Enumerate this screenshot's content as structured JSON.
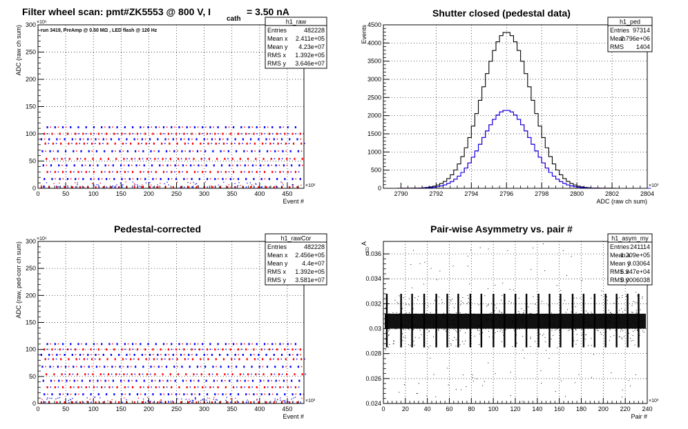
{
  "canvas_title": "Filter wheel scan: pmt#ZK5553 @   800 V, I",
  "canvas_title_sub": "cath",
  "canvas_title_tail": "= 3.50 nA",
  "colors": {
    "red": "#ff0000",
    "blue": "#0000ff",
    "black": "#000000",
    "grid": "#000000"
  },
  "chart_data": [
    {
      "id": "h1_raw",
      "type": "scatter",
      "title": "",
      "annotation": "run 3419, PreAmp @ 0.50 MΩ , LED flash @  120 Hz",
      "xlabel": "Event #",
      "ylabel": "ADC (raw ch sum)",
      "xlim": [
        0,
        480000
      ],
      "ylim": [
        0,
        300000000
      ],
      "x_ticks": [
        "0",
        "50",
        "100",
        "150",
        "200",
        "250",
        "300",
        "350",
        "400",
        "450"
      ],
      "x_tick_values": [
        0,
        50000,
        100000,
        150000,
        200000,
        250000,
        300000,
        350000,
        400000,
        450000
      ],
      "x_exponent": "×10³",
      "y_ticks": [
        "0",
        "50",
        "100",
        "150",
        "200",
        "250",
        "300"
      ],
      "y_tick_values": [
        0,
        50000000,
        100000000,
        150000000,
        200000000,
        250000000,
        300000000
      ],
      "y_exponent": "×10⁶",
      "grid": true,
      "levels": [
        2000000,
        17000000,
        30000000,
        42000000,
        54000000,
        68000000,
        82000000,
        90000000,
        100000000,
        112000000
      ],
      "stats": {
        "title": "h1_raw",
        "rows": [
          [
            "Entries",
            "482228"
          ],
          [
            "Mean x",
            "2.411e+05"
          ],
          [
            "Mean y",
            "4.23e+07"
          ],
          [
            "RMS x",
            "1.392e+05"
          ],
          [
            "RMS y",
            "3.646e+07"
          ]
        ]
      }
    },
    {
      "id": "h1_ped",
      "type": "line",
      "title": "Shutter closed (pedestal data)",
      "xlabel": "ADC (raw ch sum)",
      "ylabel": "Events",
      "xlim": [
        2789000,
        2804000
      ],
      "ylim": [
        0,
        4500
      ],
      "x_ticks": [
        "2790",
        "2792",
        "2794",
        "2796",
        "2798",
        "2800",
        "2802",
        "2804"
      ],
      "x_tick_values": [
        2790000,
        2792000,
        2794000,
        2796000,
        2798000,
        2800000,
        2802000,
        2804000
      ],
      "x_exponent": "×10³",
      "y_ticks": [
        "0",
        "500",
        "1000",
        "1500",
        "2000",
        "2500",
        "3000",
        "3500",
        "4000",
        "4500"
      ],
      "y_tick_values": [
        0,
        500,
        1000,
        1500,
        2000,
        2500,
        3000,
        3500,
        4000,
        4500
      ],
      "grid": true,
      "series": [
        {
          "color": "black",
          "mean": 2796000,
          "sigma": 1400,
          "peak": 4300
        },
        {
          "color": "red",
          "mean": 2796000,
          "sigma": 1400,
          "peak": 2150
        },
        {
          "color": "blue",
          "mean": 2796000,
          "sigma": 1400,
          "peak": 2150
        }
      ],
      "stats": {
        "title": "h1_ped",
        "rows": [
          [
            "Entries",
            "97314"
          ],
          [
            "Mean",
            "2.796e+06"
          ],
          [
            "RMS",
            "1404"
          ]
        ]
      }
    },
    {
      "id": "h1_rawCor",
      "type": "scatter",
      "title": "Pedestal-corrected",
      "xlabel": "Event #",
      "ylabel": "ADC (raw, ped-corr ch sum)",
      "xlim": [
        0,
        480000
      ],
      "ylim": [
        0,
        300000000
      ],
      "x_ticks": [
        "0",
        "50",
        "100",
        "150",
        "200",
        "250",
        "300",
        "350",
        "400",
        "450"
      ],
      "x_tick_values": [
        0,
        50000,
        100000,
        150000,
        200000,
        250000,
        300000,
        350000,
        400000,
        450000
      ],
      "x_exponent": "×10³",
      "y_ticks": [
        "0",
        "50",
        "100",
        "150",
        "200",
        "250",
        "300"
      ],
      "y_tick_values": [
        0,
        50000000,
        100000000,
        150000000,
        200000000,
        250000000,
        300000000
      ],
      "y_exponent": "×10⁶",
      "grid": true,
      "levels": [
        2000000,
        17000000,
        30000000,
        42000000,
        54000000,
        68000000,
        82000000,
        90000000,
        100000000,
        110000000
      ],
      "stats": {
        "title": "h1_rawCor",
        "rows": [
          [
            "Entries",
            "482228"
          ],
          [
            "Mean x",
            "2.456e+05"
          ],
          [
            "Mean y",
            "4.4e+07"
          ],
          [
            "RMS x",
            "1.392e+05"
          ],
          [
            "RMS y",
            "3.581e+07"
          ]
        ]
      }
    },
    {
      "id": "h1_asym_my",
      "type": "scatter",
      "title": "Pair-wise Asymmetry vs. pair #",
      "xlabel": "Pair #",
      "ylabel": "A",
      "ylabel_sub": "LED",
      "xlim": [
        0,
        240000
      ],
      "ylim": [
        0.024,
        0.037
      ],
      "x_ticks": [
        "0",
        "20",
        "40",
        "60",
        "80",
        "100",
        "120",
        "140",
        "160",
        "180",
        "200",
        "220",
        "240"
      ],
      "x_tick_values": [
        0,
        20000,
        40000,
        60000,
        80000,
        100000,
        120000,
        140000,
        160000,
        180000,
        200000,
        220000,
        240000
      ],
      "x_exponent": "×10³",
      "y_ticks": [
        "0.024",
        "0.026",
        "0.028",
        "0.03",
        "0.032",
        "0.034",
        "0.036"
      ],
      "y_tick_values": [
        0.024,
        0.026,
        0.028,
        0.03,
        0.032,
        0.034,
        0.036
      ],
      "grid": true,
      "band_center": 0.0306,
      "band_halfwidth": 0.0006,
      "spikes_up": [
        3000,
        16000,
        26000,
        37000,
        48000,
        58000,
        68000,
        79000,
        89000,
        100000,
        110000,
        120000,
        130000,
        141000,
        151000,
        161000,
        172000,
        182000,
        192000,
        202000,
        212000,
        222000,
        232000
      ],
      "stats": {
        "title": "h1_asym_my",
        "rows": [
          [
            "Entries",
            "241114"
          ],
          [
            "Mean x",
            "1.209e+05"
          ],
          [
            "Mean y",
            "0.03064"
          ],
          [
            "RMS x",
            "6.947e+04"
          ],
          [
            "RMS y",
            "0.0006038"
          ]
        ]
      }
    }
  ]
}
